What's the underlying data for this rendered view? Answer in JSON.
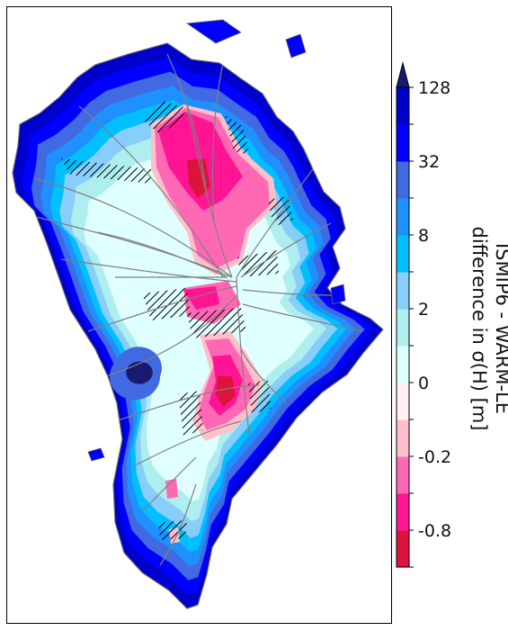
{
  "colorbar": {
    "title_line1": "ISMIP6 - WARM-LE",
    "title_line2": "difference in σ(H) [m]",
    "tick_labels": [
      "128",
      "32",
      "8",
      "2",
      "0",
      "-0.2",
      "-0.8"
    ],
    "bins_bottom_to_top": [
      {
        "color": "#dc143c"
      },
      {
        "color": "#ff1493"
      },
      {
        "color": "#ff69b4"
      },
      {
        "color": "#ffc0cb"
      },
      {
        "color": "#fff0f5"
      },
      {
        "color": "#e0ffff"
      },
      {
        "color": "#afeeee"
      },
      {
        "color": "#87cefa"
      },
      {
        "color": "#00bfff"
      },
      {
        "color": "#1e90ff"
      },
      {
        "color": "#4169e1"
      },
      {
        "color": "#0000ff"
      },
      {
        "color": "#0000cd"
      }
    ],
    "extend_color": "#191970"
  },
  "map": {
    "region": "Greenland",
    "hatching": "black diagonal",
    "flowlines_color": "#808080"
  }
}
